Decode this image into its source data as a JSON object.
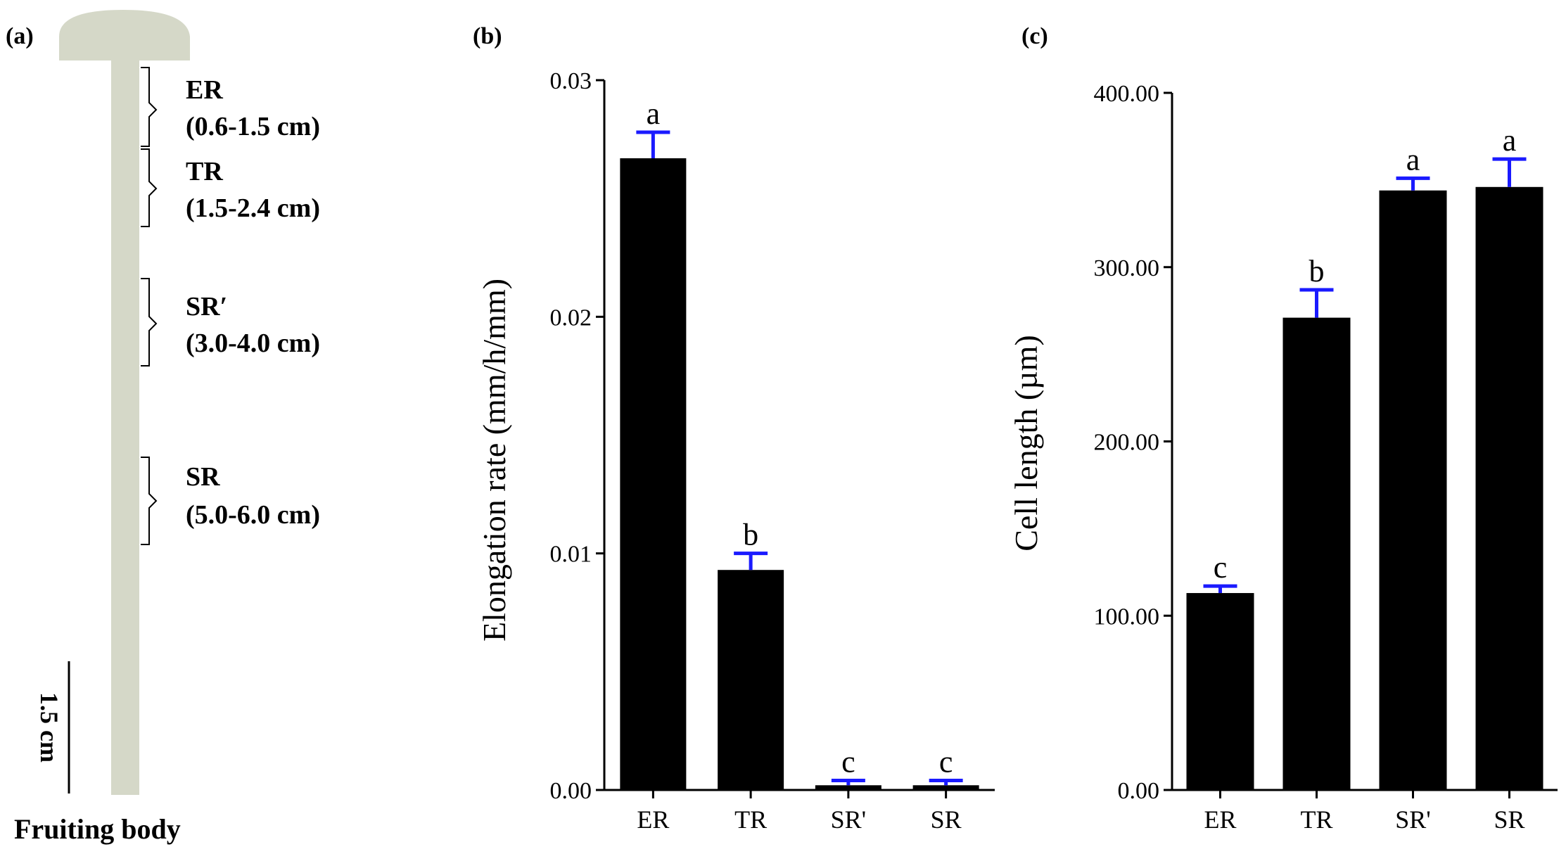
{
  "panel_a": {
    "label": "(a)",
    "caption": "Fruiting body",
    "scale_bar_label": "1.5 cm",
    "stipe_color": "#d5d8c8",
    "regions": [
      {
        "name": "ER",
        "range": "(0.6-1.5 cm)"
      },
      {
        "name": "TR",
        "range": "(1.5-2.4 cm)"
      },
      {
        "name": "SR′",
        "range": "(3.0-4.0 cm)"
      },
      {
        "name": "SR",
        "range": "(5.0-6.0 cm)"
      }
    ]
  },
  "chart_data": [
    {
      "type": "bar",
      "panel_label": "(b)",
      "categories": [
        "ER",
        "TR",
        "SR'",
        "SR"
      ],
      "values": [
        0.0267,
        0.0093,
        0.0002,
        0.0002
      ],
      "errors": [
        0.0011,
        0.0007,
        0.0002,
        0.0002
      ],
      "significance": [
        "a",
        "b",
        "c",
        "c"
      ],
      "ylabel": "Elongation rate (mm/h/mm)",
      "xlabel": "",
      "ylim": [
        0,
        0.03
      ],
      "yticks": [
        "0.00",
        "0.01",
        "0.02",
        "0.03"
      ],
      "bar_color": "#000000",
      "error_color": "#1a1aff"
    },
    {
      "type": "bar",
      "panel_label": "(c)",
      "categories": [
        "ER",
        "TR",
        "SR'",
        "SR"
      ],
      "values": [
        113,
        271,
        344,
        346
      ],
      "errors": [
        4,
        16,
        7,
        16
      ],
      "significance": [
        "c",
        "b",
        "a",
        "a"
      ],
      "ylabel": "Cell length (µm)",
      "xlabel": "",
      "ylim": [
        0,
        400
      ],
      "yticks": [
        "0.00",
        "100.00",
        "200.00",
        "300.00",
        "400.00"
      ],
      "bar_color": "#000000",
      "error_color": "#1a1aff"
    }
  ]
}
